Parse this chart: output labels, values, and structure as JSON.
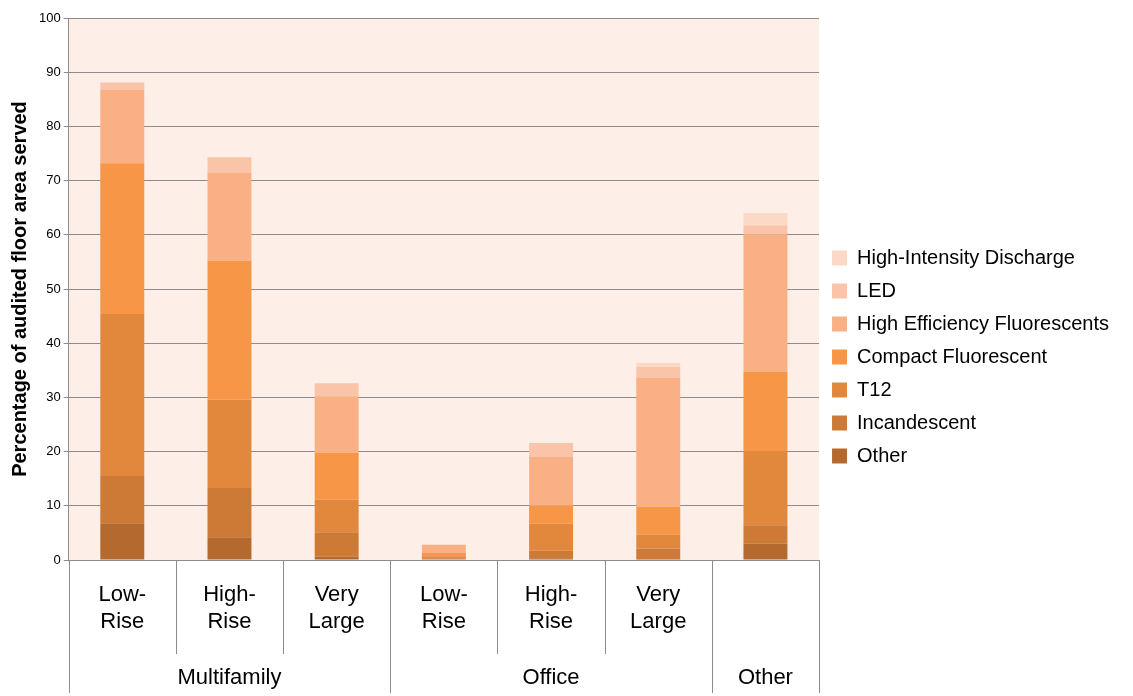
{
  "chart_data": {
    "type": "bar",
    "stacked": true,
    "ylabel": "Percentage of audited floor area served",
    "categories": [
      "Low-Rise",
      "High-Rise",
      "Very Large",
      "Low-Rise",
      "High-Rise",
      "Very Large",
      null
    ],
    "annotations": [
      "Multifamily",
      "Office",
      "Other"
    ],
    "series": [
      {
        "name": "Other",
        "color": "#b46a2e",
        "values": [
          6.8,
          4.2,
          0.6,
          0.1,
          0.3,
          0.2,
          3.0
        ]
      },
      {
        "name": "Incandescent",
        "color": "#cd7a36",
        "values": [
          8.7,
          9.1,
          4.5,
          0.2,
          1.4,
          1.9,
          3.4
        ]
      },
      {
        "name": "T12",
        "color": "#e2883c",
        "values": [
          29.9,
          16.3,
          6.0,
          0.4,
          5.0,
          2.6,
          13.7
        ]
      },
      {
        "name": "Compact Fluorescent",
        "color": "#f79646",
        "values": [
          27.8,
          25.6,
          8.7,
          0.7,
          3.3,
          5.1,
          14.7
        ]
      },
      {
        "name": "High Efficiency Fluorescents",
        "color": "#f9b084",
        "values": [
          13.5,
          16.3,
          10.4,
          1.4,
          9.0,
          23.8,
          25.3
        ]
      },
      {
        "name": "LED",
        "color": "#fac4a8",
        "values": [
          1.3,
          2.8,
          2.4,
          0,
          2.6,
          2.0,
          1.6
        ]
      },
      {
        "name": "High-Intensity Discharge",
        "color": "#fcd9c6",
        "values": [
          0.2,
          null,
          0,
          0,
          0,
          0.8,
          2.3
        ]
      }
    ],
    "ylim": [
      0,
      100
    ],
    "yticks": [
      0,
      10,
      20,
      30,
      40,
      50,
      60,
      70,
      80,
      90,
      100
    ],
    "grid": "y",
    "legend": "right"
  }
}
